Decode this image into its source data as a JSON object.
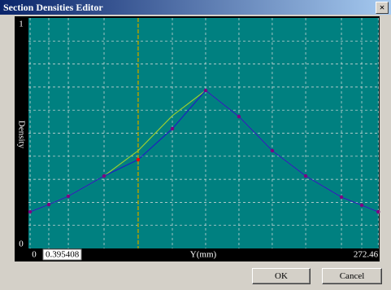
{
  "window": {
    "title": "Section Densities Editor",
    "close": "×",
    "ok": "OK",
    "cancel": "Cancel"
  },
  "chart_data": {
    "type": "line",
    "ylabel": "Density",
    "xlabel": "Y(mm)",
    "x": [
      1.3,
      15.8,
      31.0,
      58.8,
      85.3,
      111.9,
      137.8,
      163.7,
      189.6,
      215.6,
      243.4,
      259.2,
      272.0
    ],
    "series": [
      {
        "color": "#9acd32",
        "values": [
          0.148,
          0.181,
          0.219,
          0.311,
          0.426,
          0.585,
          0.7,
          0.581,
          0.426,
          0.311,
          0.215,
          0.178,
          0.148
        ]
      },
      {
        "color": "#2020c0",
        "values": [
          0.148,
          0.181,
          0.219,
          0.311,
          0.385,
          0.526,
          0.7,
          0.581,
          0.426,
          0.311,
          0.215,
          0.178,
          0.148
        ]
      }
    ],
    "marker_color": "#800080",
    "selected_index": 4,
    "selected_color": "#ff0000",
    "xlim": [
      0,
      272.46
    ],
    "ylim": [
      0,
      1
    ],
    "xticks": [
      0,
      272.46
    ],
    "yticks": [
      0,
      1
    ],
    "y_input": 0.395408
  }
}
